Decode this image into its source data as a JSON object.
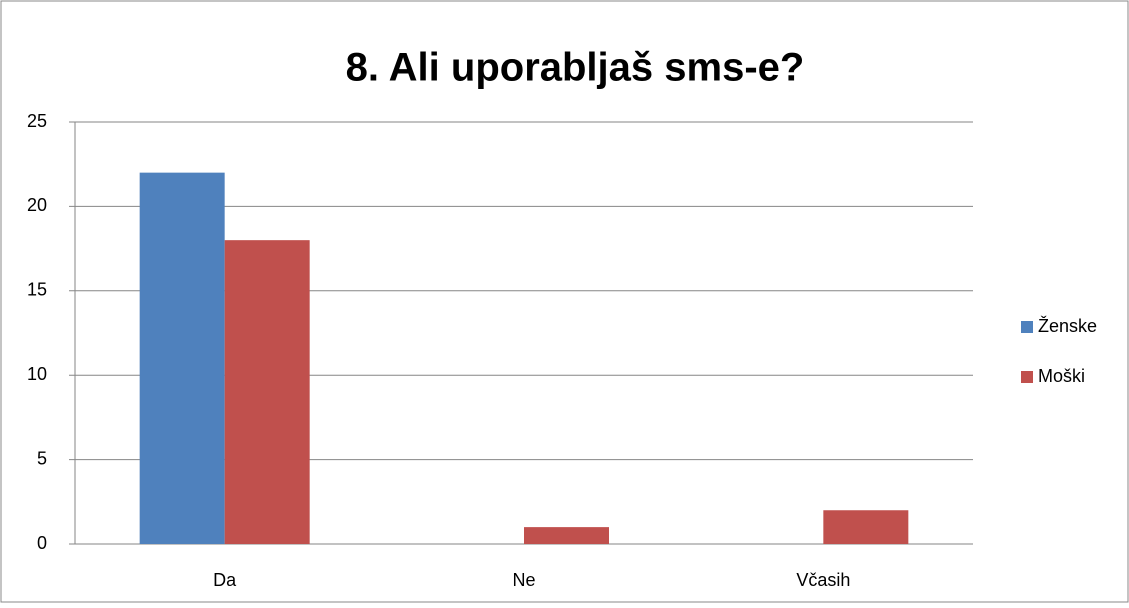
{
  "chart_data": {
    "type": "bar",
    "title": "8. Ali uporabljaš sms-e?",
    "categories": [
      "Da",
      "Ne",
      "Včasih"
    ],
    "series": [
      {
        "name": "Ženske",
        "color": "#4f81bd",
        "values": [
          22,
          0,
          0
        ]
      },
      {
        "name": "Moški",
        "color": "#c0504d",
        "values": [
          18,
          1,
          2
        ]
      }
    ],
    "ylim": [
      0,
      25
    ],
    "yticks": [
      0,
      5,
      10,
      15,
      20,
      25
    ],
    "grid": true,
    "legend": "right"
  }
}
